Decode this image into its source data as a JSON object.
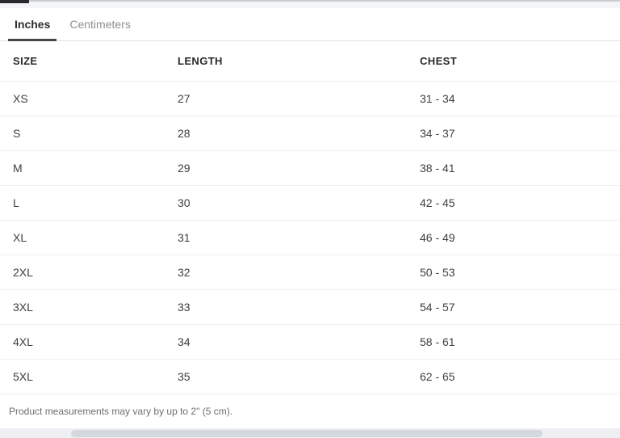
{
  "tabs": [
    {
      "label": "Inches",
      "active": true
    },
    {
      "label": "Centimeters",
      "active": false
    }
  ],
  "table": {
    "columns": [
      "SIZE",
      "LENGTH",
      "CHEST"
    ],
    "rows": [
      {
        "size": "XS",
        "length": "27",
        "chest": "31 - 34"
      },
      {
        "size": "S",
        "length": "28",
        "chest": "34 - 37"
      },
      {
        "size": "M",
        "length": "29",
        "chest": "38 - 41"
      },
      {
        "size": "L",
        "length": "30",
        "chest": "42 - 45"
      },
      {
        "size": "XL",
        "length": "31",
        "chest": "46 - 49"
      },
      {
        "size": "2XL",
        "length": "32",
        "chest": "50 - 53"
      },
      {
        "size": "3XL",
        "length": "33",
        "chest": "54 - 57"
      },
      {
        "size": "4XL",
        "length": "34",
        "chest": "58 - 61"
      },
      {
        "size": "5XL",
        "length": "35",
        "chest": "62 - 65"
      }
    ]
  },
  "footer": {
    "note": "Product measurements may vary by up to 2\" (5 cm)."
  },
  "colors": {
    "active_tab_text": "#2d2d2f",
    "active_tab_underline": "#46464a",
    "inactive_tab_text": "#8f8f92",
    "row_border": "#efeff0",
    "footer_text": "#6e6e71",
    "scrollbar_track": "#edeff2",
    "scrollbar_thumb": "#d4d7db"
  }
}
